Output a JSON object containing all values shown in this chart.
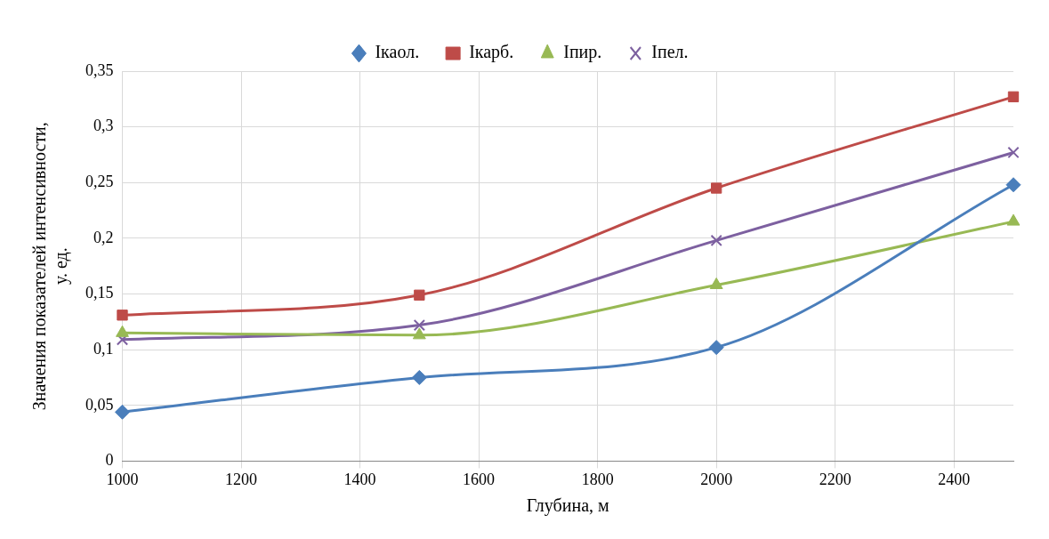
{
  "chart_data": {
    "type": "line",
    "xlabel": "Глубина, м",
    "ylabel": "Значения показателей интенсивности,\nу. ед.",
    "x": [
      1000,
      1500,
      2000,
      2500
    ],
    "series": [
      {
        "name": "Ікаол.",
        "color": "#4a7ebb",
        "marker": "diamond",
        "values": [
          0.044,
          0.075,
          0.102,
          0.248
        ]
      },
      {
        "name": "Ікарб.",
        "color": "#be4b48",
        "marker": "square",
        "values": [
          0.131,
          0.149,
          0.245,
          0.327
        ]
      },
      {
        "name": "Іпир.",
        "color": "#98b954",
        "marker": "triangle",
        "values": [
          0.115,
          0.113,
          0.158,
          0.215
        ]
      },
      {
        "name": "Іпел.",
        "color": "#7d60a0",
        "marker": "cross",
        "values": [
          0.109,
          0.122,
          0.198,
          0.277
        ]
      }
    ],
    "xlim": [
      1000,
      2500
    ],
    "xticks": [
      1000,
      1200,
      1400,
      1600,
      1800,
      2000,
      2200,
      2400
    ],
    "ylim": [
      0,
      0.35
    ],
    "yticks": [
      0,
      {
        "value": 0.05,
        "label": "0,05"
      },
      {
        "value": 0.1,
        "label": "0,1"
      },
      {
        "value": 0.15,
        "label": "0,15"
      },
      {
        "value": 0.2,
        "label": "0,2"
      },
      {
        "value": 0.25,
        "label": "0,25"
      },
      {
        "value": 0.3,
        "label": "0,3"
      },
      {
        "value": 0.35,
        "label": "0,35"
      }
    ],
    "grid": true,
    "legend": "top"
  }
}
